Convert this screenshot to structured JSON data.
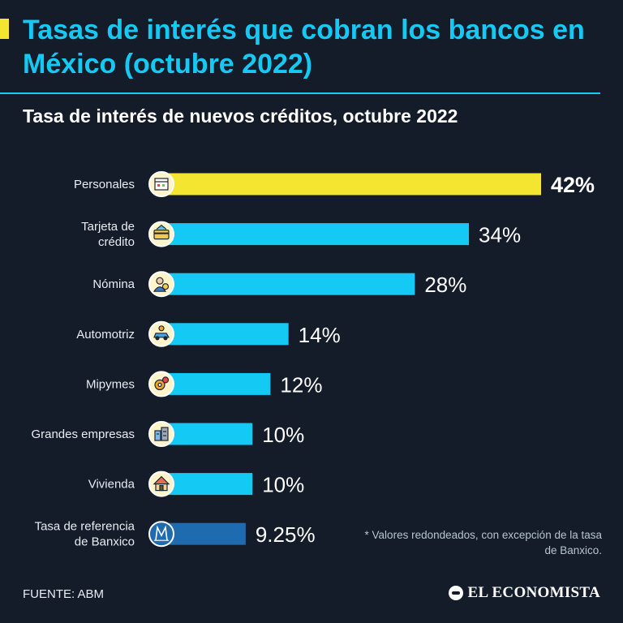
{
  "header": {
    "title": "Tasas de interés que cobran los bancos en México (octubre 2022)",
    "subtitle": "Tasa de interés de nuevos créditos, octubre 2022"
  },
  "chart_data": {
    "type": "bar",
    "orientation": "horizontal",
    "title": "Tasa de interés de nuevos créditos, octubre 2022",
    "xlim": [
      0,
      42
    ],
    "unit": "%",
    "categories": [
      {
        "label": [
          "Personales"
        ],
        "value": 42,
        "value_label": "42%",
        "color": "#f4e531",
        "highlight": true,
        "icon": "calendar-icon"
      },
      {
        "label": [
          "Tarjeta de",
          "crédito"
        ],
        "value": 34,
        "value_label": "34%",
        "color": "#14c9f4",
        "icon": "credit-card-icon"
      },
      {
        "label": [
          "Nómina"
        ],
        "value": 28,
        "value_label": "28%",
        "color": "#14c9f4",
        "icon": "worker-icon"
      },
      {
        "label": [
          "Automotriz"
        ],
        "value": 14,
        "value_label": "14%",
        "color": "#14c9f4",
        "icon": "car-icon"
      },
      {
        "label": [
          "Mipymes"
        ],
        "value": 12,
        "value_label": "12%",
        "color": "#14c9f4",
        "icon": "gears-icon"
      },
      {
        "label": [
          "Grandes empresas"
        ],
        "value": 10,
        "value_label": "10%",
        "color": "#14c9f4",
        "icon": "buildings-icon"
      },
      {
        "label": [
          "Vivienda"
        ],
        "value": 10,
        "value_label": "10%",
        "color": "#14c9f4",
        "icon": "house-icon"
      },
      {
        "label": [
          "Tasa de referencia",
          "de Banxico"
        ],
        "value": 9.25,
        "value_label": "9.25%",
        "color": "#1f6bb0",
        "icon": "banxico-icon"
      }
    ]
  },
  "footnote": "* Valores redondeados, con excepción de la tasa de Banxico.",
  "source": "FUENTE: ABM",
  "brand": "EL ECONOMISTA",
  "colors": {
    "background": "#141c29",
    "accent": "#14c9f4",
    "highlight": "#f4e531",
    "reference": "#1f6bb0"
  }
}
